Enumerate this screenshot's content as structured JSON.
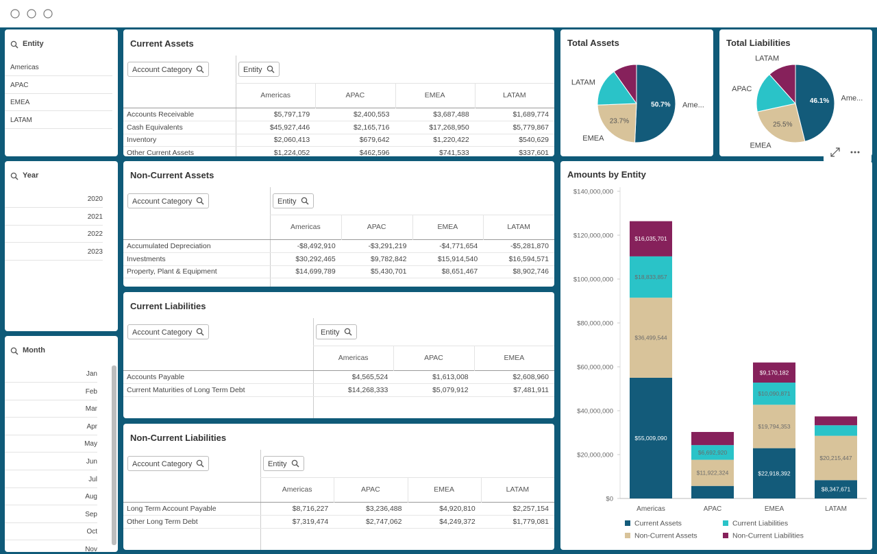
{
  "filters": [
    {
      "title": "Entity",
      "items": [
        "Americas",
        "APAC",
        "EMEA",
        "LATAM"
      ]
    },
    {
      "title": "Year",
      "items": [
        "2020",
        "2021",
        "2022",
        "2023"
      ]
    },
    {
      "title": "Month",
      "items": [
        "Jan",
        "Feb",
        "Mar",
        "Apr",
        "May",
        "Jun",
        "Jul",
        "Aug",
        "Sep",
        "Oct",
        "Nov"
      ]
    }
  ],
  "tables": [
    {
      "title": "Current Assets",
      "search": [
        "Account Category",
        "Entity"
      ],
      "columns": [
        "Americas",
        "APAC",
        "EMEA",
        "LATAM"
      ],
      "rows": [
        {
          "label": "Accounts Receivable",
          "cells": [
            "$5,797,179",
            "$2,400,553",
            "$3,687,488",
            "$1,689,774"
          ]
        },
        {
          "label": "Cash Equivalents",
          "cells": [
            "$45,927,446",
            "$2,165,716",
            "$17,268,950",
            "$5,779,867"
          ]
        },
        {
          "label": "Inventory",
          "cells": [
            "$2,060,413",
            "$679,642",
            "$1,220,422",
            "$540,629"
          ]
        },
        {
          "label": "Other Current Assets",
          "cells": [
            "$1,224,052",
            "$462,596",
            "$741,533",
            "$337,601"
          ]
        }
      ]
    },
    {
      "title": "Non-Current Assets",
      "search": [
        "Account Category",
        "Entity"
      ],
      "columns": [
        "Americas",
        "APAC",
        "EMEA",
        "LATAM"
      ],
      "rows": [
        {
          "label": "Accumulated Depreciation",
          "cells": [
            "-$8,492,910",
            "-$3,291,219",
            "-$4,771,654",
            "-$5,281,870"
          ]
        },
        {
          "label": "Investments",
          "cells": [
            "$30,292,465",
            "$9,782,842",
            "$15,914,540",
            "$16,594,571"
          ]
        },
        {
          "label": "Property, Plant & Equipment",
          "cells": [
            "$14,699,789",
            "$5,430,701",
            "$8,651,467",
            "$8,902,746"
          ]
        }
      ]
    },
    {
      "title": "Current Liabilities",
      "search": [
        "Account Category",
        "Entity"
      ],
      "columns": [
        "Americas",
        "APAC",
        "EMEA"
      ],
      "rows": [
        {
          "label": "Accounts Payable",
          "cells": [
            "$4,565,524",
            "$1,613,008",
            "$2,608,960"
          ]
        },
        {
          "label": "Current Maturities of Long Term Debt",
          "cells": [
            "$14,268,333",
            "$5,079,912",
            "$7,481,911"
          ]
        }
      ]
    },
    {
      "title": "Non-Current Liabilities",
      "search": [
        "Account Category",
        "Entity"
      ],
      "columns": [
        "Americas",
        "APAC",
        "EMEA",
        "LATAM"
      ],
      "rows": [
        {
          "label": "Long Term Account Payable",
          "cells": [
            "$8,716,227",
            "$3,236,488",
            "$4,920,810",
            "$2,257,154"
          ]
        },
        {
          "label": "Other Long Term Debt",
          "cells": [
            "$7,319,474",
            "$2,747,062",
            "$4,249,372",
            "$1,779,081"
          ]
        }
      ]
    }
  ],
  "chart_data": [
    {
      "type": "pie",
      "title": "Total Assets",
      "categories": [
        "Ame...",
        "EMEA",
        "LATAM",
        null
      ],
      "values": [
        50.7,
        23.7,
        15.8,
        9.8
      ],
      "value_labels": [
        "50.7%",
        "23.7%",
        null,
        null
      ],
      "colors": [
        "#135b7a",
        "#d8c39a",
        "#2ac3c8",
        "#86215b"
      ]
    },
    {
      "type": "pie",
      "title": "Total Liabilities",
      "categories": [
        "Ame...",
        "EMEA",
        "APAC",
        "LATAM"
      ],
      "values": [
        46.1,
        25.5,
        16.8,
        11.6
      ],
      "value_labels": [
        "46.1%",
        "25.5%",
        null,
        null
      ],
      "colors": [
        "#135b7a",
        "#d8c39a",
        "#2ac3c8",
        "#86215b"
      ]
    },
    {
      "type": "stacked-bar",
      "title": "Amounts by Entity",
      "categories": [
        "Americas",
        "APAC",
        "EMEA",
        "LATAM"
      ],
      "series": [
        {
          "name": "Current Assets",
          "color": "#135b7a",
          "values": [
            55009090,
            5708507,
            22918392,
            8347671
          ],
          "value_labels": [
            "$55,009,090",
            null,
            "$22,918,392",
            "$8,347,671"
          ]
        },
        {
          "name": "Non-Current Assets",
          "color": "#d8c39a",
          "values": [
            36499544,
            11922324,
            19794353,
            20215447
          ],
          "value_labels": [
            "$36,499,544",
            "$11,922,324",
            "$19,794,353",
            "$20,215,447"
          ]
        },
        {
          "name": "Current Liabilities",
          "color": "#2ac3c8",
          "values": [
            18833857,
            6692920,
            10090871,
            4800000
          ],
          "value_labels": [
            "$18,833,857",
            "$6,692,920",
            "$10,090,871",
            null
          ]
        },
        {
          "name": "Non-Current Liabilities",
          "color": "#86215b",
          "values": [
            16035701,
            5983549,
            9170182,
            4036235
          ],
          "value_labels": [
            "$16,035,701",
            null,
            "$9,170,182",
            null
          ]
        }
      ],
      "ylim": [
        0,
        140000000
      ],
      "yticks": [
        {
          "value": 0,
          "label": "$0"
        },
        {
          "value": 20000000,
          "label": "$20,000,000"
        },
        {
          "value": 40000000,
          "label": "$40,000,000"
        },
        {
          "value": 60000000,
          "label": "$60,000,000"
        },
        {
          "value": 80000000,
          "label": "$80,000,000"
        },
        {
          "value": 100000000,
          "label": "$100,000,000"
        },
        {
          "value": 120000000,
          "label": "$120,000,000"
        },
        {
          "value": 140000000,
          "label": "$140,000,000"
        }
      ],
      "grid": false
    }
  ]
}
